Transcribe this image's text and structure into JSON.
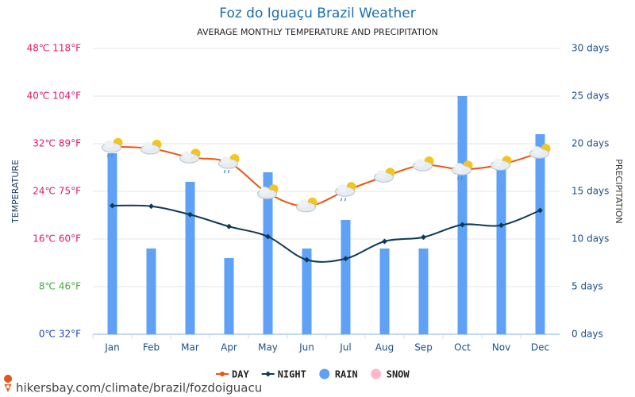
{
  "chart_data": {
    "type": "combo",
    "title": "Foz do Iguaçu Brazil Weather",
    "subtitle": "AVERAGE MONTHLY TEMPERATURE AND PRECIPITATION",
    "y_label": "TEMPERATURE",
    "y2_label": "PRECIPITATION",
    "source": "hikersbay.com/climate/brazil/fozdoiguacu",
    "categories": [
      "Jan",
      "Feb",
      "Mar",
      "Apr",
      "May",
      "Jun",
      "Jul",
      "Aug",
      "Sep",
      "Oct",
      "Nov",
      "Dec"
    ],
    "ylim": [
      0,
      48
    ],
    "yticks": [
      {
        "value": 0,
        "label": "0℃ 32°F"
      },
      {
        "value": 8,
        "label": "8℃ 46°F"
      },
      {
        "value": 16,
        "label": "16℃ 60°F"
      },
      {
        "value": 24,
        "label": "24℃ 75°F"
      },
      {
        "value": 32,
        "label": "32℃ 89°F"
      },
      {
        "value": 40,
        "label": "40℃ 104°F"
      },
      {
        "value": 48,
        "label": "48℃ 118°F"
      }
    ],
    "ytick_colors": [
      "#1b44b8",
      "#46a842",
      "#e0186a",
      "#e0186a",
      "#e0186a",
      "#e0186a",
      "#e0186a"
    ],
    "y2lim": [
      0,
      30
    ],
    "y2ticks": [
      {
        "value": 0,
        "label": "0 days"
      },
      {
        "value": 5,
        "label": "5 days"
      },
      {
        "value": 10,
        "label": "10 days"
      },
      {
        "value": 15,
        "label": "15 days"
      },
      {
        "value": 20,
        "label": "20 days"
      },
      {
        "value": 25,
        "label": "25 days"
      },
      {
        "value": 30,
        "label": "30 days"
      }
    ],
    "grid": true,
    "series": [
      {
        "name": "DAY",
        "type": "line",
        "color": "#ee5512",
        "marker": "circle",
        "values": [
          31.5,
          31.2,
          29.7,
          28.8,
          23.7,
          21.5,
          24.1,
          26.5,
          28.4,
          27.7,
          28.5,
          30.5
        ]
      },
      {
        "name": "NIGHT",
        "type": "line",
        "color": "#0e3a56",
        "marker": "diamond",
        "values": [
          21.6,
          21.5,
          20.1,
          18.1,
          16.4,
          12.5,
          12.7,
          15.6,
          16.3,
          18.4,
          18.3,
          20.8
        ]
      },
      {
        "name": "RAIN",
        "type": "bar",
        "axis": "y2",
        "color": "#5ea1f7",
        "values": [
          19,
          9,
          16,
          8,
          17,
          9,
          12,
          9,
          9,
          25,
          18,
          21
        ]
      },
      {
        "name": "SNOW",
        "type": "bar",
        "axis": "y2",
        "color": "#ffb7c9",
        "values": [
          0,
          0,
          0,
          0,
          0,
          0,
          0,
          0,
          0,
          0,
          0,
          0
        ]
      }
    ]
  }
}
